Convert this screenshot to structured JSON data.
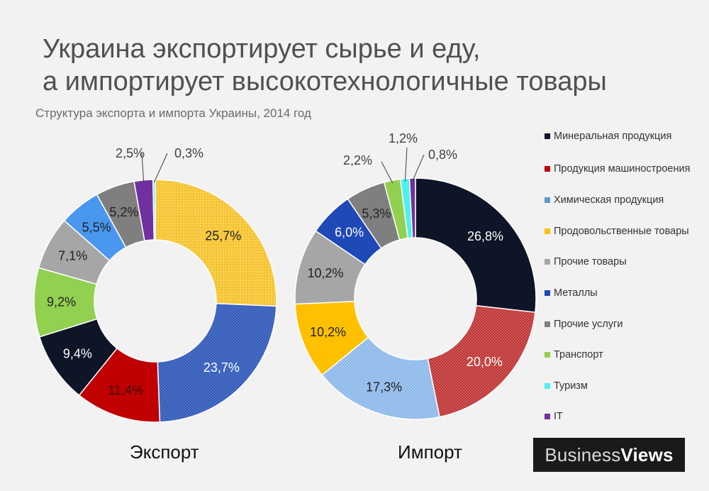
{
  "title_line1": "Украина экспортирует сырье и еду,",
  "title_line2": "а импортирует высокотехнологичные товары",
  "subtitle": "Структура экспорта и импорта Украины, 2014 год",
  "brand": {
    "part1": "Business",
    "part2": "Views"
  },
  "legend": [
    {
      "label": "Минеральная продукция",
      "color": "#0d1526"
    },
    {
      "label": "Продукция машиностроения",
      "color": "#c00000"
    },
    {
      "label": "Химическая продукция",
      "color": "#5b9bd5"
    },
    {
      "label": "Продовольственные товары",
      "color": "#ffc000"
    },
    {
      "label": "Прочие товары",
      "color": "#a6a6a6"
    },
    {
      "label": "Металлы",
      "color": "#1f49b6"
    },
    {
      "label": "Прочие услуги",
      "color": "#7f7f7f"
    },
    {
      "label": "Транспорт",
      "color": "#92d050"
    },
    {
      "label": "Туризм",
      "color": "#4ff0f0"
    },
    {
      "label": "IT",
      "color": "#7030a0"
    }
  ],
  "chart_data": [
    {
      "type": "pie",
      "donut": true,
      "title": "Экспорт",
      "slices": [
        {
          "category": "Продовольственные товары",
          "value": 25.7,
          "label": "25,7%",
          "color": "#f7c93e",
          "texture": "dots"
        },
        {
          "category": "Металлы",
          "value": 23.7,
          "label": "23,7%",
          "color": "#2a52b0",
          "texture": "grid"
        },
        {
          "category": "Продукция машиностроения",
          "value": 11.4,
          "label": "11,4%",
          "color": "#c00000",
          "texture": "none"
        },
        {
          "category": "Минеральная продукция",
          "value": 9.4,
          "label": "9,4%",
          "color": "#0d1526",
          "texture": "none"
        },
        {
          "category": "Транспорт",
          "value": 9.2,
          "label": "9,2%",
          "color": "#92d050",
          "texture": "none"
        },
        {
          "category": "Прочие товары",
          "value": 7.1,
          "label": "7,1%",
          "color": "#a6a6a6",
          "texture": "none"
        },
        {
          "category": "Химическая продукция",
          "value": 5.5,
          "label": "5,5%",
          "color": "#4a97ef",
          "texture": "none"
        },
        {
          "category": "Прочие услуги",
          "value": 5.2,
          "label": "5,2%",
          "color": "#7f7f7f",
          "texture": "none"
        },
        {
          "category": "IT",
          "value": 2.5,
          "label": "2,5%",
          "color": "#7030a0",
          "texture": "none"
        },
        {
          "category": "Туризм",
          "value": 0.3,
          "label": "0,3%",
          "color": "#4ff0f0",
          "texture": "none"
        }
      ]
    },
    {
      "type": "pie",
      "donut": true,
      "title": "Импорт",
      "slices": [
        {
          "category": "Минеральная продукция",
          "value": 26.8,
          "label": "26,8%",
          "color": "#0d1526",
          "texture": "none"
        },
        {
          "category": "Продукция машиностроения",
          "value": 20.0,
          "label": "20,0%",
          "color": "#b52a2a",
          "texture": "cross"
        },
        {
          "category": "Химическая продукция",
          "value": 17.3,
          "label": "17,3%",
          "color": "#7fb0e6",
          "texture": "cross"
        },
        {
          "category": "Продовольственные товары",
          "value": 10.2,
          "label": "10,2%",
          "color": "#ffc000",
          "texture": "none"
        },
        {
          "category": "Прочие товары",
          "value": 10.2,
          "label": "10,2%",
          "color": "#a6a6a6",
          "texture": "none"
        },
        {
          "category": "Металлы",
          "value": 6.0,
          "label": "6,0%",
          "color": "#1f49b6",
          "texture": "none"
        },
        {
          "category": "Прочие услуги",
          "value": 5.3,
          "label": "5,3%",
          "color": "#7f7f7f",
          "texture": "none"
        },
        {
          "category": "Транспорт",
          "value": 2.2,
          "label": "2,2%",
          "color": "#92d050",
          "texture": "none"
        },
        {
          "category": "Туризм",
          "value": 1.2,
          "label": "1,2%",
          "color": "#4ff0f0",
          "texture": "none"
        },
        {
          "category": "IT",
          "value": 0.8,
          "label": "0,8%",
          "color": "#7030a0",
          "texture": "none"
        }
      ]
    }
  ]
}
